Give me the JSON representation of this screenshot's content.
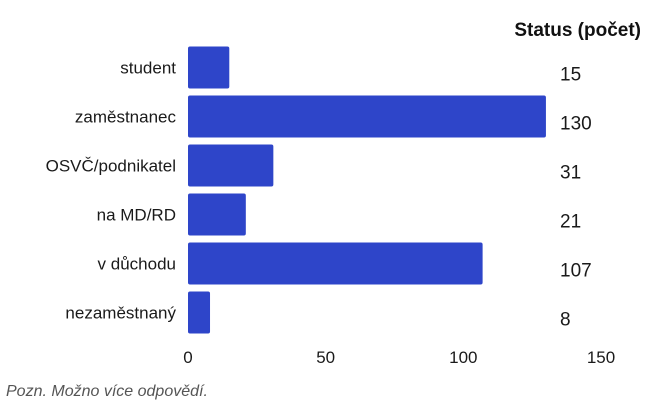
{
  "chart_data": {
    "type": "bar",
    "orientation": "horizontal",
    "title": "Status (počet)",
    "categories": [
      "student",
      "zaměstnanec",
      "OSVČ/podnikatel",
      "na MD/RD",
      "v důchodu",
      "nezaměstnaný"
    ],
    "values": [
      15,
      130,
      31,
      21,
      107,
      8
    ],
    "value_labels": [
      "15",
      "130",
      "31",
      "21",
      "107",
      "8"
    ],
    "xlabel": "",
    "ylabel": "",
    "xlim": [
      0,
      150
    ],
    "x_ticks": [
      0,
      50,
      100,
      150
    ],
    "x_tick_labels": [
      "0",
      "50",
      "100",
      "150"
    ],
    "grid": false,
    "bar_color": "#2e45c9"
  },
  "footnote": "Pozn. Možno více odpovědí."
}
